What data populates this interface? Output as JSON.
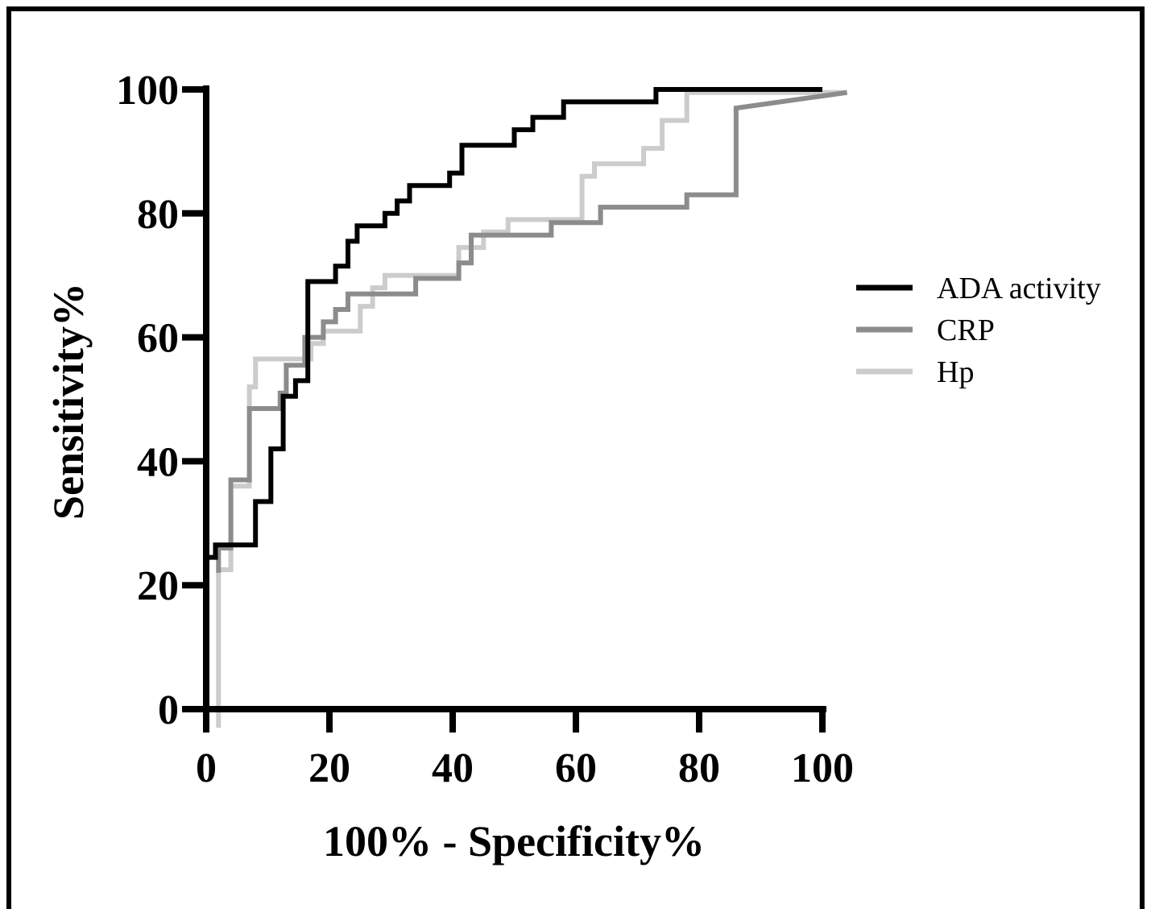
{
  "chart_data": {
    "type": "line",
    "title": "",
    "xlabel": "100% - Specificity%",
    "ylabel": "Sensitivity%",
    "xlim": [
      0,
      100
    ],
    "ylim": [
      0,
      100
    ],
    "x_ticks": [
      "0",
      "20",
      "40",
      "60",
      "80",
      "100"
    ],
    "y_ticks": [
      "0",
      "20",
      "40",
      "60",
      "80",
      "100"
    ],
    "grid": false,
    "legend_position": "right",
    "series": [
      {
        "name": "ADA activity",
        "color": "#000000",
        "points": [
          [
            0,
            24.5
          ],
          [
            1.5,
            24.5
          ],
          [
            1.5,
            26.5
          ],
          [
            8,
            26.5
          ],
          [
            8,
            33.5
          ],
          [
            10.5,
            33.5
          ],
          [
            10.5,
            42
          ],
          [
            12.5,
            42
          ],
          [
            12.5,
            50.5
          ],
          [
            14.5,
            50.5
          ],
          [
            14.5,
            53
          ],
          [
            16.5,
            53
          ],
          [
            16.5,
            69
          ],
          [
            21,
            69
          ],
          [
            21,
            71.5
          ],
          [
            23,
            71.5
          ],
          [
            23,
            75.5
          ],
          [
            24.5,
            75.5
          ],
          [
            24.5,
            78
          ],
          [
            29,
            78
          ],
          [
            29,
            80
          ],
          [
            31,
            80
          ],
          [
            31,
            82
          ],
          [
            33,
            82
          ],
          [
            33,
            84.5
          ],
          [
            39.5,
            84.5
          ],
          [
            39.5,
            86.5
          ],
          [
            41.5,
            86.5
          ],
          [
            41.5,
            91
          ],
          [
            50,
            91
          ],
          [
            50,
            93.5
          ],
          [
            53,
            93.5
          ],
          [
            53,
            95.5
          ],
          [
            58,
            95.5
          ],
          [
            58,
            98
          ],
          [
            73,
            98
          ],
          [
            73,
            100
          ],
          [
            100,
            100
          ]
        ]
      },
      {
        "name": "CRP",
        "color": "#8c8c8c",
        "points": [
          [
            2,
            22
          ],
          [
            2,
            26
          ],
          [
            4,
            26
          ],
          [
            4,
            37
          ],
          [
            7,
            37
          ],
          [
            7,
            48.5
          ],
          [
            12,
            48.5
          ],
          [
            12,
            51
          ],
          [
            13,
            51
          ],
          [
            13,
            55.5
          ],
          [
            16,
            55.5
          ],
          [
            16,
            60
          ],
          [
            19,
            60
          ],
          [
            19,
            62.5
          ],
          [
            21,
            62.5
          ],
          [
            21,
            64.5
          ],
          [
            23,
            64.5
          ],
          [
            23,
            67
          ],
          [
            34,
            67
          ],
          [
            34,
            69.5
          ],
          [
            41,
            69.5
          ],
          [
            41,
            72
          ],
          [
            43,
            72
          ],
          [
            43,
            76.5
          ],
          [
            56,
            76.5
          ],
          [
            56,
            78.5
          ],
          [
            64,
            78.5
          ],
          [
            64,
            81
          ],
          [
            78,
            81
          ],
          [
            78,
            83
          ],
          [
            86,
            83
          ],
          [
            86,
            97
          ],
          [
            104,
            99.5
          ]
        ]
      },
      {
        "name": "Hp",
        "color": "#cccccc",
        "points": [
          [
            2,
            -3
          ],
          [
            2,
            22.5
          ],
          [
            4,
            22.5
          ],
          [
            4,
            36
          ],
          [
            7,
            36
          ],
          [
            7,
            52
          ],
          [
            8,
            52
          ],
          [
            8,
            56.5
          ],
          [
            17,
            56.5
          ],
          [
            17,
            59
          ],
          [
            19,
            59
          ],
          [
            19,
            61
          ],
          [
            25,
            61
          ],
          [
            25,
            65
          ],
          [
            27,
            65
          ],
          [
            27,
            68
          ],
          [
            29,
            68
          ],
          [
            29,
            70
          ],
          [
            41,
            70
          ],
          [
            41,
            74.5
          ],
          [
            45,
            74.5
          ],
          [
            45,
            77
          ],
          [
            49,
            77
          ],
          [
            49,
            79
          ],
          [
            61,
            79
          ],
          [
            61,
            86
          ],
          [
            63,
            86
          ],
          [
            63,
            88
          ],
          [
            71,
            88
          ],
          [
            71,
            90.5
          ],
          [
            74,
            90.5
          ],
          [
            74,
            95
          ],
          [
            78,
            95
          ],
          [
            78,
            99.5
          ],
          [
            104,
            99.5
          ]
        ]
      }
    ]
  }
}
